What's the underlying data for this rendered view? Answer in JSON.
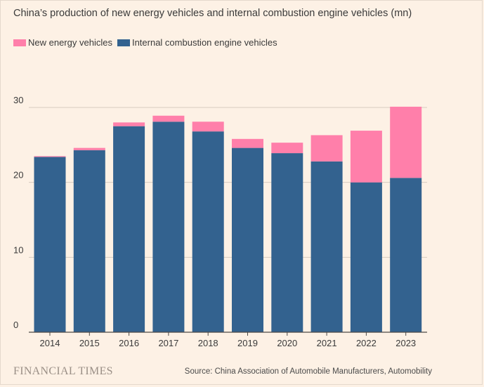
{
  "colors": {
    "background": "#fdf1e5",
    "nev": "#ff7faa",
    "ice": "#33628f",
    "gridline": "#d6cbc0",
    "axis": "#4d4a47",
    "text": "#3a3a3a"
  },
  "footer": {
    "brand": "FINANCIAL TIMES",
    "source": "Source: China Association of Automobile Manufacturers, Automobility"
  },
  "chart_data": {
    "type": "bar",
    "stacked": true,
    "title": "China’s production of new energy vehicles and internal combustion engine vehicles (mn)",
    "xlabel": "",
    "ylabel": "",
    "ylim": [
      0,
      30
    ],
    "yticks": [
      0,
      10,
      20,
      30
    ],
    "grid": true,
    "legend_position": "top-left",
    "categories": [
      "2014",
      "2015",
      "2016",
      "2017",
      "2018",
      "2019",
      "2020",
      "2021",
      "2022",
      "2023"
    ],
    "series": [
      {
        "name": "Internal combustion engine vehicles",
        "color": "#33628f",
        "values": [
          23.4,
          24.3,
          27.5,
          28.1,
          26.8,
          24.6,
          23.9,
          22.8,
          20.0,
          20.6
        ]
      },
      {
        "name": "New energy vehicles",
        "color": "#ff7faa",
        "values": [
          0.1,
          0.3,
          0.5,
          0.8,
          1.3,
          1.2,
          1.4,
          3.5,
          6.9,
          9.5
        ]
      }
    ]
  }
}
